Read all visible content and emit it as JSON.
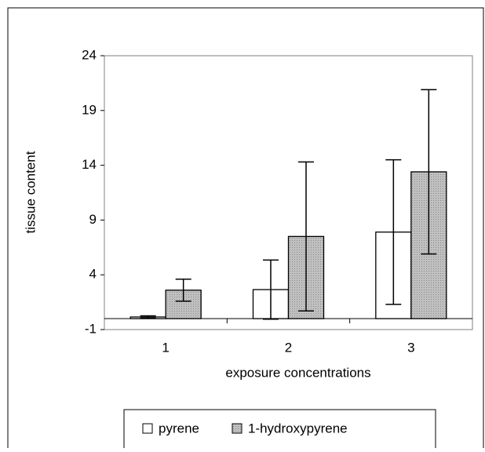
{
  "chart_data": {
    "type": "bar",
    "categories": [
      "1",
      "2",
      "3"
    ],
    "xlabel": "exposure concentrations",
    "ylabel": "tissue content",
    "series": [
      {
        "name": "pyrene",
        "color": "#ffffff",
        "values": [
          0.15,
          2.65,
          7.9
        ],
        "errors": [
          0.1,
          2.7,
          6.6
        ]
      },
      {
        "name": "1-hydroxypyrene",
        "color": "#c0c0c0",
        "values": [
          2.6,
          7.5,
          13.4
        ],
        "errors": [
          1.0,
          6.8,
          7.5
        ]
      }
    ],
    "ylim": [
      -1,
      24
    ],
    "yticks": [
      -1,
      4,
      9,
      14,
      19,
      24
    ],
    "legend": "bottom"
  }
}
